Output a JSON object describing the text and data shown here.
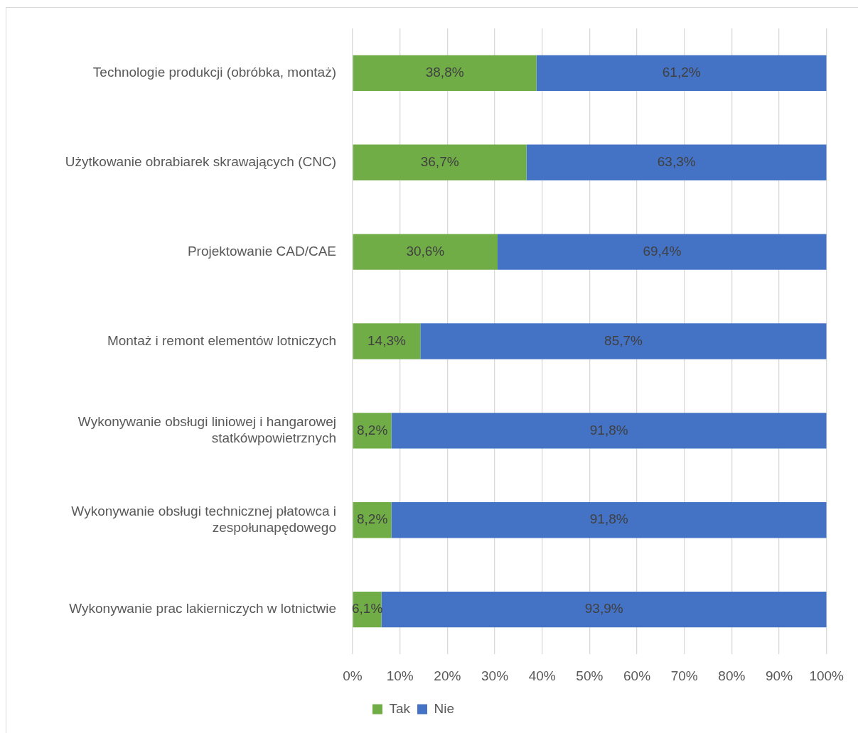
{
  "chart_data": {
    "type": "bar",
    "orientation": "horizontal",
    "stacked": true,
    "categories": [
      "Technologie produkcji (obróbka, montaż)",
      "Użytkowanie obrabiarek skrawających (CNC)",
      "Projektowanie CAD/CAE",
      "Montaż i remont elementów lotniczych",
      "Wykonywanie obsługi liniowej i hangarowej statkówpowietrznych",
      "Wykonywanie obsługi technicznej płatowca i zespołunapędowego",
      "Wykonywanie prac lakierniczych w lotnictwie"
    ],
    "series": [
      {
        "name": "Tak",
        "color": "#70ad47",
        "values": [
          38.8,
          36.7,
          30.6,
          14.3,
          8.2,
          8.2,
          6.1
        ],
        "value_labels": [
          "38,8%",
          "36,7%",
          "30,6%",
          "14,3%",
          "8,2%",
          "8,2%",
          "6,1%"
        ]
      },
      {
        "name": "Nie",
        "color": "#4472c4",
        "values": [
          61.2,
          63.3,
          69.4,
          85.7,
          91.8,
          91.8,
          93.9
        ],
        "value_labels": [
          "61,2%",
          "63,3%",
          "69,4%",
          "85,7%",
          "91,8%",
          "91,8%",
          "93,9%"
        ]
      }
    ],
    "xlim": [
      0,
      100
    ],
    "xticks": [
      {
        "value": 0,
        "label": "0%"
      },
      {
        "value": 10,
        "label": "10%"
      },
      {
        "value": 20,
        "label": "20%"
      },
      {
        "value": 30,
        "label": "30%"
      },
      {
        "value": 40,
        "label": "40%"
      },
      {
        "value": 50,
        "label": "50%"
      },
      {
        "value": 60,
        "label": "60%"
      },
      {
        "value": 70,
        "label": "70%"
      },
      {
        "value": 80,
        "label": "80%"
      },
      {
        "value": 90,
        "label": "90%"
      },
      {
        "value": 100,
        "label": "100%"
      }
    ],
    "grid": "x",
    "legend": "bottom"
  }
}
